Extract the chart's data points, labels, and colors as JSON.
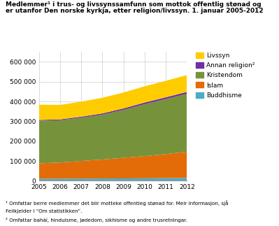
{
  "years": [
    2005,
    2006,
    2007,
    2008,
    2009,
    2010,
    2011,
    2012
  ],
  "Buddhisme": [
    10000,
    10500,
    11000,
    11500,
    12000,
    12500,
    13500,
    14500
  ],
  "Islam": [
    78000,
    82000,
    89000,
    96000,
    104000,
    112000,
    121000,
    132000
  ],
  "Kristendom": [
    215000,
    213000,
    218000,
    226000,
    242000,
    262000,
    278000,
    292000
  ],
  "Annan religion": [
    4000,
    4500,
    5500,
    6500,
    7500,
    8500,
    9000,
    10000
  ],
  "Livssyn": [
    77000,
    73000,
    76000,
    79000,
    80000,
    82000,
    83000,
    85000
  ],
  "colors": {
    "Buddhisme": "#4bacc6",
    "Islam": "#e36c09",
    "Kristendom": "#76933c",
    "Annan religion": "#7030a0",
    "Livssyn": "#ffcc00"
  },
  "title_line1": "Medlemmer¹ i trus- og livssynssamfunn som mottok offentlig stønad og",
  "title_line2": "er utanfor Den norske kyrkja, etter religion/livssyn. 1. januar 2005-2012",
  "ylim": [
    0,
    650000
  ],
  "yticks": [
    0,
    100000,
    200000,
    300000,
    400000,
    500000,
    600000
  ],
  "footnote1": "¹ Omfattar berre medlemmer det blir motteke offentleg stønad for. Meir informasjon, sjå",
  "footnote2": "Feilkjelder i “Om statistikken”.",
  "footnote3": "² Omfattar baháí, hinduisme, jødedom, sikhisme og andre trusretningar.",
  "background_color": "#ffffff",
  "grid_color": "#cccccc"
}
